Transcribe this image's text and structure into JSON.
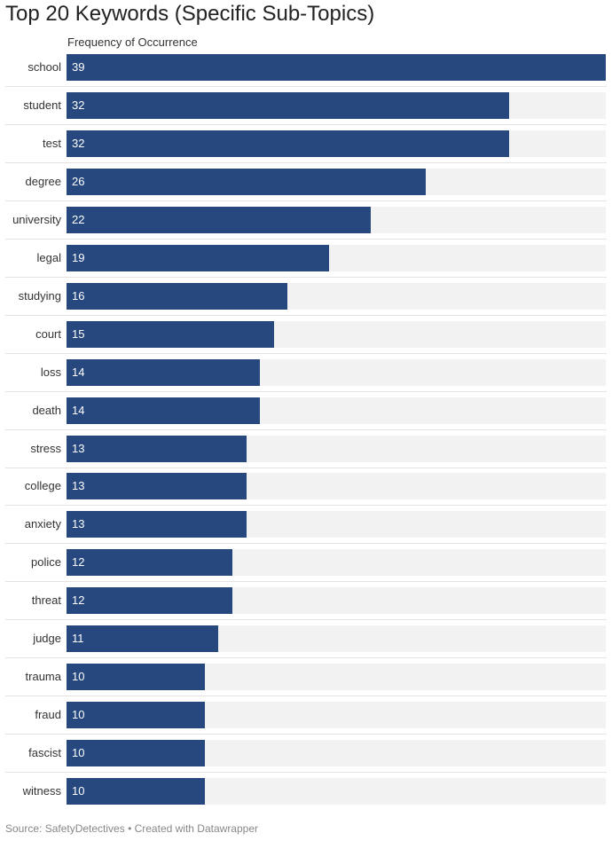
{
  "chart_data": {
    "type": "bar",
    "orientation": "horizontal",
    "title": "Top 20 Keywords (Specific Sub-Topics)",
    "subtitle": "Frequency of Occurrence",
    "categories": [
      "school",
      "student",
      "test",
      "degree",
      "university",
      "legal",
      "studying",
      "court",
      "loss",
      "death",
      "stress",
      "college",
      "anxiety",
      "police",
      "threat",
      "judge",
      "trauma",
      "fraud",
      "fascist",
      "witness"
    ],
    "values": [
      39,
      32,
      32,
      26,
      22,
      19,
      16,
      15,
      14,
      14,
      13,
      13,
      13,
      12,
      12,
      11,
      10,
      10,
      10,
      10
    ],
    "xlim": [
      0,
      39
    ],
    "bar_color": "#26487e",
    "background_bar_color": "#f2f2f2",
    "value_label_color": "#ffffff"
  },
  "footer": {
    "source": "Source: SafetyDetectives • Created with Datawrapper"
  }
}
